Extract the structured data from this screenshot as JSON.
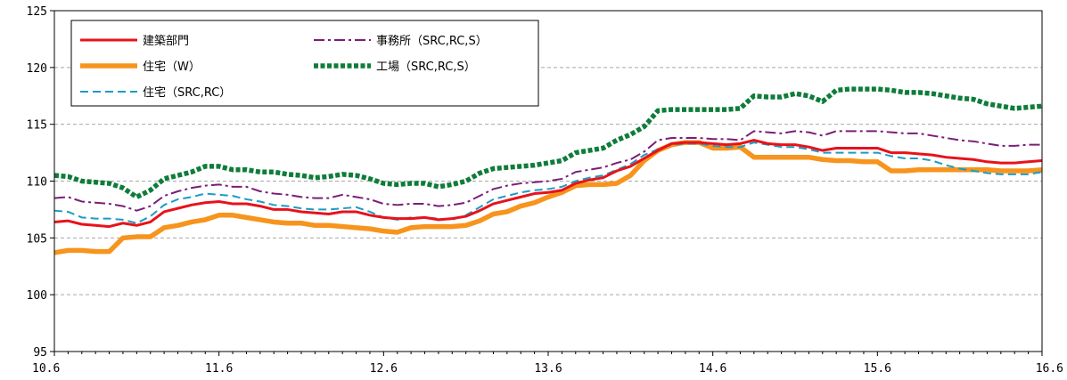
{
  "chart_data": {
    "type": "line",
    "title": "",
    "xlabel": "",
    "ylabel": "",
    "ylim": [
      95,
      125
    ],
    "yticks": [
      95,
      100,
      105,
      110,
      115,
      120,
      125
    ],
    "grid": "horizontal dashed",
    "legend_position": "top-left",
    "x_start": "10.6",
    "x_tick_labels": [
      "10.6",
      "11.6",
      "12.6",
      "13.6",
      "14.6",
      "15.6",
      "16.6"
    ],
    "x_tick_indices": [
      0,
      12,
      24,
      36,
      48,
      60,
      72
    ],
    "series": [
      {
        "name": "建築部門",
        "color": "#e8121a",
        "style": "solid",
        "values": [
          106.4,
          106.5,
          106.2,
          106.1,
          106.0,
          106.3,
          106.1,
          106.4,
          107.3,
          107.6,
          107.9,
          108.1,
          108.2,
          108.0,
          108.0,
          107.8,
          107.5,
          107.5,
          107.3,
          107.2,
          107.1,
          107.3,
          107.3,
          107.0,
          106.8,
          106.7,
          106.7,
          106.8,
          106.6,
          106.7,
          106.9,
          107.4,
          108.0,
          108.3,
          108.6,
          108.9,
          109.0,
          109.2,
          109.8,
          110.1,
          110.3,
          110.9,
          111.3,
          112.0,
          112.7,
          113.3,
          113.4,
          113.4,
          113.3,
          113.2,
          113.3,
          113.6,
          113.3,
          113.2,
          113.2,
          113.0,
          112.7,
          112.9,
          112.9,
          112.9,
          112.9,
          112.5,
          112.5,
          112.4,
          112.3,
          112.1,
          112.0,
          111.9,
          111.7,
          111.6,
          111.6,
          111.7,
          111.8
        ]
      },
      {
        "name": "住宅（W）",
        "color": "#f7941d",
        "style": "bold",
        "values": [
          103.7,
          103.9,
          103.9,
          103.8,
          103.8,
          105.0,
          105.1,
          105.1,
          105.9,
          106.1,
          106.4,
          106.6,
          107.0,
          107.0,
          106.8,
          106.6,
          106.4,
          106.3,
          106.3,
          106.1,
          106.1,
          106.0,
          105.9,
          105.8,
          105.6,
          105.5,
          105.9,
          106.0,
          106.0,
          106.0,
          106.1,
          106.5,
          107.1,
          107.3,
          107.8,
          108.1,
          108.6,
          109.0,
          109.6,
          109.7,
          109.7,
          109.8,
          110.5,
          111.8,
          112.7,
          113.2,
          113.4,
          113.4,
          112.9,
          112.9,
          113.0,
          112.1,
          112.1,
          112.1,
          112.1,
          112.1,
          111.9,
          111.8,
          111.8,
          111.7,
          111.7,
          110.9,
          110.9,
          111.0,
          111.0,
          111.0,
          111.0,
          111.0,
          111.0,
          110.9,
          110.9,
          110.9,
          111.0
        ]
      },
      {
        "name": "住宅（SRC,RC）",
        "color": "#1b9bc4",
        "style": "dashed",
        "values": [
          107.4,
          107.3,
          106.8,
          106.7,
          106.7,
          106.6,
          106.3,
          106.9,
          107.9,
          108.4,
          108.6,
          108.9,
          108.8,
          108.7,
          108.4,
          108.2,
          107.9,
          107.8,
          107.6,
          107.5,
          107.5,
          107.6,
          107.7,
          107.3,
          106.8,
          106.6,
          106.8,
          106.8,
          106.7,
          106.6,
          107.0,
          107.7,
          108.4,
          108.7,
          109.0,
          109.2,
          109.3,
          109.5,
          110.0,
          110.3,
          110.5,
          111.0,
          111.5,
          112.3,
          112.8,
          113.2,
          113.3,
          113.3,
          113.1,
          113.0,
          113.0,
          113.4,
          113.2,
          113.0,
          113.0,
          112.8,
          112.5,
          112.5,
          112.5,
          112.5,
          112.5,
          112.2,
          112.0,
          112.0,
          111.8,
          111.4,
          111.1,
          110.9,
          110.7,
          110.6,
          110.6,
          110.6,
          110.8
        ]
      },
      {
        "name": "事務所（SRC,RC,S）",
        "color": "#7a1e78",
        "style": "dashdot",
        "values": [
          108.5,
          108.6,
          108.2,
          108.1,
          108.0,
          107.8,
          107.4,
          107.8,
          108.7,
          109.1,
          109.4,
          109.6,
          109.7,
          109.5,
          109.5,
          109.1,
          108.9,
          108.8,
          108.6,
          108.5,
          108.5,
          108.8,
          108.6,
          108.4,
          108.0,
          107.9,
          108.0,
          108.0,
          107.8,
          107.9,
          108.1,
          108.7,
          109.3,
          109.6,
          109.8,
          109.9,
          110.0,
          110.2,
          110.8,
          111.0,
          111.2,
          111.6,
          111.9,
          112.6,
          113.6,
          113.8,
          113.8,
          113.8,
          113.7,
          113.7,
          113.6,
          114.4,
          114.3,
          114.2,
          114.4,
          114.3,
          114.0,
          114.4,
          114.4,
          114.4,
          114.4,
          114.3,
          114.2,
          114.2,
          114.0,
          113.8,
          113.6,
          113.5,
          113.3,
          113.1,
          113.1,
          113.2,
          113.2
        ]
      },
      {
        "name": "工場（SRC,RC,S）",
        "color": "#0e7c3a",
        "style": "dotted",
        "values": [
          110.5,
          110.4,
          110.0,
          109.9,
          109.8,
          109.4,
          108.6,
          109.2,
          110.2,
          110.5,
          110.8,
          111.3,
          111.3,
          111.0,
          111.0,
          110.8,
          110.8,
          110.6,
          110.5,
          110.3,
          110.4,
          110.6,
          110.5,
          110.2,
          109.8,
          109.7,
          109.8,
          109.8,
          109.5,
          109.7,
          110.0,
          110.7,
          111.1,
          111.2,
          111.3,
          111.4,
          111.6,
          111.8,
          112.5,
          112.7,
          112.9,
          113.6,
          114.1,
          114.8,
          116.2,
          116.3,
          116.3,
          116.3,
          116.3,
          116.3,
          116.4,
          117.5,
          117.4,
          117.4,
          117.7,
          117.5,
          117.0,
          118.0,
          118.1,
          118.1,
          118.1,
          118.0,
          117.8,
          117.8,
          117.7,
          117.5,
          117.3,
          117.2,
          116.8,
          116.6,
          116.4,
          116.5,
          116.6
        ]
      }
    ]
  }
}
